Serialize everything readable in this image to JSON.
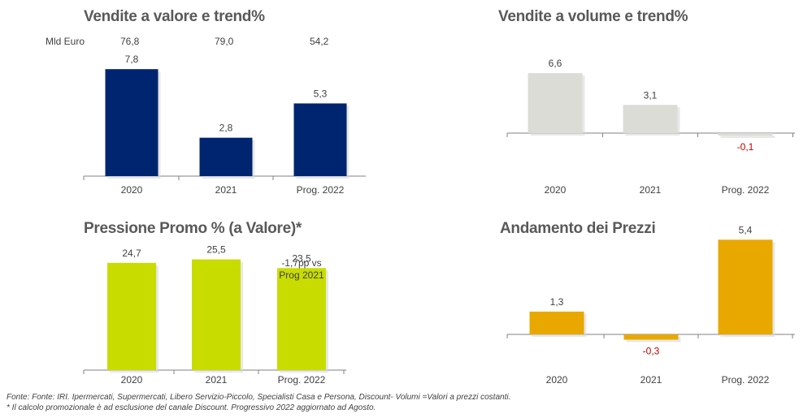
{
  "chart_data": [
    {
      "type": "bar",
      "title": "Vendite a valore e trend%",
      "header_label": "Mld Euro",
      "header_values": [
        "76,8",
        "79,0",
        "54,2"
      ],
      "categories": [
        "2020",
        "2021",
        "Prog. 2022"
      ],
      "values": [
        7.8,
        2.8,
        5.3
      ],
      "value_labels": [
        "7,8",
        "2,8",
        "5,3"
      ],
      "color": "#002570"
    },
    {
      "type": "bar",
      "title": "Vendite a volume e trend%",
      "categories": [
        "2020",
        "2021",
        "Prog. 2022"
      ],
      "values": [
        6.6,
        3.1,
        -0.1
      ],
      "value_labels": [
        "6,6",
        "3,1",
        "-0,1"
      ],
      "color": "#dcdcd7"
    },
    {
      "type": "bar",
      "title": "Pressione Promo % (a Valore)*",
      "categories": [
        "2020",
        "2021",
        "Prog. 2022"
      ],
      "values": [
        24.7,
        25.5,
        23.5
      ],
      "value_labels": [
        "24,7",
        "25,5",
        "23,5"
      ],
      "annotation": [
        "-1,7pp vs",
        "Prog 2021"
      ],
      "color": "#c8dc00"
    },
    {
      "type": "bar",
      "title": "Andamento dei Prezzi",
      "categories": [
        "2020",
        "2021",
        "Prog. 2022"
      ],
      "values": [
        1.3,
        -0.3,
        5.4
      ],
      "value_labels": [
        "1,3",
        "-0,3",
        "5,4"
      ],
      "color": "#e8a800"
    }
  ],
  "footnotes": [
    "Fonte: Fonte: IRI. Ipermercati, Supermercati, Libero Servizio-Piccolo, Specialisti Casa e Persona, Discount-  Volumi =Valori a prezzi costanti.",
    "* Il calcolo promozionale è ad esclusione del canale Discount. Progressivo 2022 aggiornato ad Agosto."
  ]
}
